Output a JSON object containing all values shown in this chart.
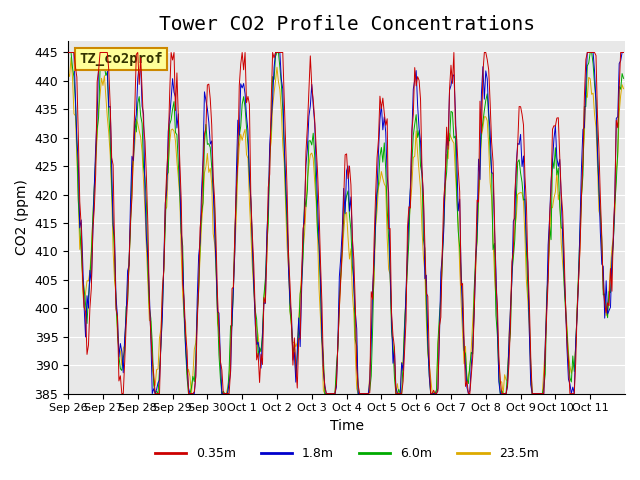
{
  "title": "Tower CO2 Profile Concentrations",
  "xlabel": "Time",
  "ylabel": "CO2 (ppm)",
  "ylim": [
    385,
    447
  ],
  "yticks": [
    385,
    390,
    395,
    400,
    405,
    410,
    415,
    420,
    425,
    430,
    435,
    440,
    445
  ],
  "xtick_labels": [
    "Sep 26",
    "Sep 27",
    "Sep 28",
    "Sep 29",
    "Sep 30",
    "Oct 1",
    "Oct 2",
    "Oct 3",
    "Oct 4",
    "Oct 5",
    "Oct 6",
    "Oct 7",
    "Oct 8",
    "Oct 9",
    "Oct 10",
    "Oct 11"
  ],
  "series_colors": [
    "#cc0000",
    "#0000cc",
    "#00aa00",
    "#ddaa00"
  ],
  "series_labels": [
    "0.35m",
    "1.8m",
    "6.0m",
    "23.5m"
  ],
  "legend_label": "TZ_co2prof",
  "legend_bg": "#ffff99",
  "legend_border": "#cc8800",
  "background_color": "#e8e8e8",
  "title_fontsize": 14,
  "axis_fontsize": 10,
  "tick_fontsize": 9,
  "legend_fontsize": 9,
  "n_points": 384,
  "n_days": 16,
  "seed": 42
}
